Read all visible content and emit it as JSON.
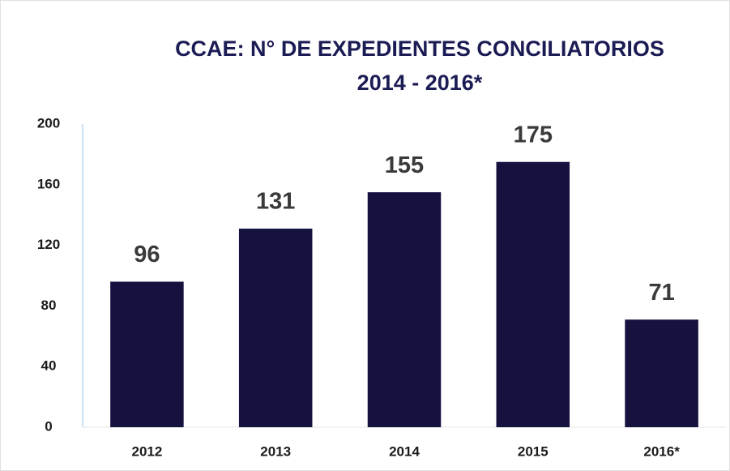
{
  "chart_data": {
    "type": "bar",
    "title": "CCAE: N° DE EXPEDIENTES CONCILIATORIOS",
    "subtitle": "2014 - 2016*",
    "categories": [
      "2012",
      "2013",
      "2014",
      "2015",
      "2016*"
    ],
    "values": [
      96,
      131,
      155,
      175,
      71
    ],
    "color": "#15123f",
    "ylim": [
      0,
      200
    ],
    "yticks": [
      0,
      40,
      80,
      120,
      160,
      200
    ],
    "grid": false,
    "data_labels": true
  }
}
